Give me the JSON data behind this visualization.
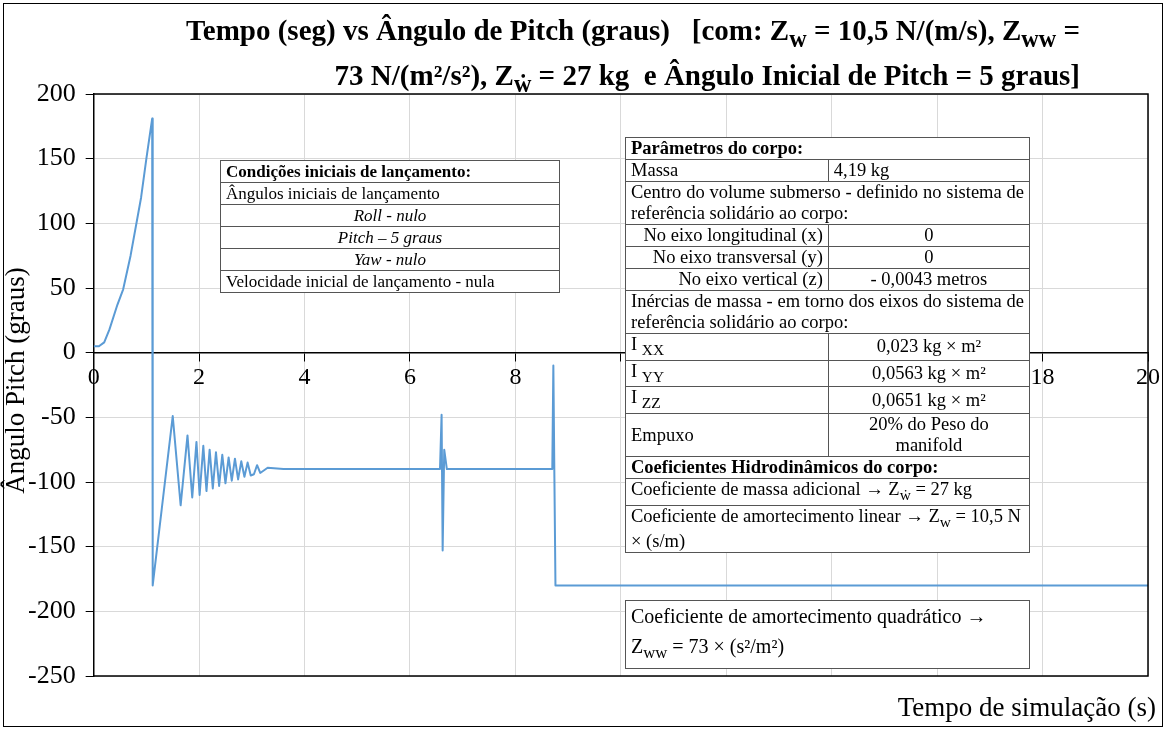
{
  "chart_data": {
    "type": "line",
    "title": "Tempo (seg) vs Ângulo de Pitch (graus)   [com: Z$_{w}$ = 10,5 N/(m/s), Z$_{ww}$ = 73 N/(m²/s²), Z$_{ẇ}$ = 27 kg  e Ângulo Inicial de Pitch = 5 graus]",
    "xlabel": "Tempo de simulação (s)",
    "ylabel": "Ângulo Pitch (graus)",
    "x": [
      0,
      0.1,
      0.2,
      0.3,
      0.45,
      0.56,
      0.7,
      0.9,
      1.0,
      1.11,
      1.12,
      1.5,
      1.65,
      1.78,
      1.87,
      1.95,
      2.01,
      2.08,
      2.14,
      2.2,
      2.26,
      2.32,
      2.38,
      2.44,
      2.5,
      2.56,
      2.62,
      2.68,
      2.74,
      2.8,
      2.86,
      2.92,
      2.98,
      3.04,
      3.1,
      3.16,
      3.3,
      3.6,
      3.9,
      6.57,
      6.6,
      6.62,
      6.65,
      6.7,
      8.7,
      8.72,
      8.74,
      8.76,
      20
    ],
    "series": [
      {
        "color": "#5b9bd5",
        "values": [
          5,
          5,
          8,
          18,
          37,
          49,
          75,
          120,
          150,
          181,
          -180,
          -49,
          -118,
          -64,
          -112,
          -69,
          -110,
          -72,
          -107,
          -75,
          -105,
          -77,
          -103,
          -79,
          -101,
          -81,
          -99,
          -82,
          -98,
          -84,
          -96,
          -85,
          -95,
          -94,
          -87,
          -93,
          -89,
          -90,
          -90,
          -90,
          -48,
          -153,
          -75,
          -90,
          -90,
          -10,
          -97,
          -180,
          -180
        ]
      }
    ],
    "xlim": [
      0,
      20
    ],
    "xticks": [
      0,
      2,
      4,
      6,
      8,
      {
        "value": 10,
        "label": null
      },
      {
        "value": 12,
        "label": null
      },
      {
        "value": 14,
        "label": null
      },
      {
        "value": 16,
        "label": null
      },
      18,
      20
    ],
    "ylim": [
      -250,
      200
    ],
    "yticks": [
      -250,
      -200,
      -150,
      -100,
      -50,
      0,
      50,
      100,
      150,
      200
    ],
    "grid": true,
    "annotations": [
      "Condições iniciais de lançamento:",
      "Ângulos iniciais de lançamento",
      "Roll - nulo",
      "Pitch – 5 graus",
      "Yaw - nulo",
      "Velocidade inicial de lançamento - nula",
      "Parâmetros do corpo:",
      "Massa",
      "4,19 kg",
      "Centro do volume submerso - definido no sistema de referência solidário ao corpo:",
      "No eixo longitudinal (x)",
      "0",
      "No eixo transversal (y)",
      "0",
      "No eixo vertical (z)",
      "- 0,0043 metros",
      "Inércias de massa - em torno dos eixos do sistema de referência solidário ao corpo:",
      "I $_{XX}$",
      "0,023 kg × m²",
      "I $_{YY}$",
      "0,0563 kg × m²",
      "I $_{ZZ}$",
      "0,0651 kg × m²",
      "Empuxo",
      "20% do Peso do manifold",
      "Coeficientes Hidrodinâmicos do corpo:",
      "Coeficiente de massa adicional → Z$_{ẇ}$ = 27 kg",
      "Coeficiente de amortecimento linear → Z$_{w}$ = 10,5 N × (s/m)",
      "Coeficiente de amortecimento quadrático → Z$_{ww}$ = 73 × (s²/m²)"
    ]
  }
}
